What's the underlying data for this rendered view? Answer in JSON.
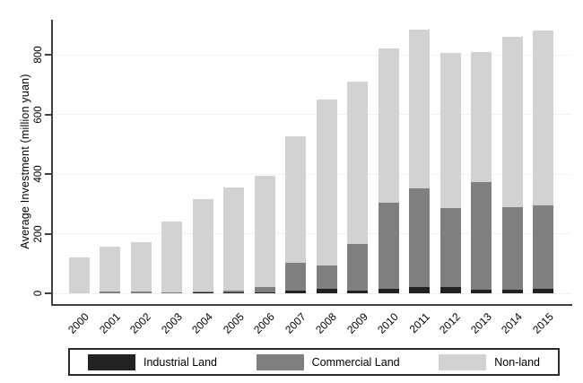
{
  "chart_data": {
    "type": "bar",
    "stacked": true,
    "title": "",
    "xlabel": "",
    "ylabel": "Average Investment (million yuan)",
    "categories": [
      "2000",
      "2001",
      "2002",
      "2003",
      "2004",
      "2005",
      "2006",
      "2007",
      "2008",
      "2009",
      "2010",
      "2011",
      "2012",
      "2013",
      "2014",
      "2015"
    ],
    "series": [
      {
        "name": "Industrial Land",
        "color": "#222222",
        "values": [
          0,
          0,
          0,
          0,
          2,
          4,
          3,
          9,
          15,
          10,
          15,
          21,
          20,
          13,
          12,
          14
        ]
      },
      {
        "name": "Commercial Land",
        "color": "#7f7f7f",
        "values": [
          0,
          5,
          5,
          3,
          5,
          5,
          18,
          92,
          78,
          155,
          290,
          331,
          265,
          360,
          278,
          280
        ]
      },
      {
        "name": "Non-land",
        "color": "#d2d2d2",
        "values": [
          120,
          150,
          165,
          237,
          308,
          346,
          374,
          424,
          557,
          545,
          515,
          533,
          520,
          437,
          570,
          586
        ]
      }
    ],
    "ylim": [
      0,
      910
    ],
    "yticks": [
      0,
      200,
      400,
      600,
      800
    ],
    "grid": true,
    "gridline_color": "#edf4f2",
    "axis_color": "#404040",
    "legend_position": "bottom",
    "x_label_angle_deg": -45,
    "y_tick_label_angle_deg": -90
  }
}
